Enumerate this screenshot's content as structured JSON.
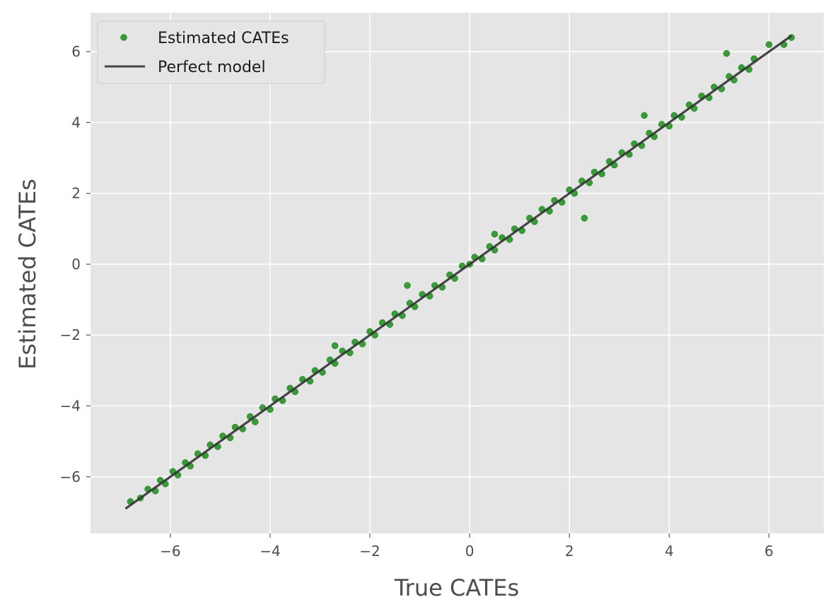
{
  "chart_data": {
    "type": "scatter",
    "xlabel": "True CATEs",
    "ylabel": "Estimated CATEs",
    "xlim": [
      -7.6,
      7.1
    ],
    "ylim": [
      -7.6,
      7.1
    ],
    "x_ticks": [
      -6,
      -4,
      -2,
      0,
      2,
      4,
      6
    ],
    "y_ticks": [
      -6,
      -4,
      -2,
      0,
      2,
      4,
      6
    ],
    "grid": true,
    "legend_position": "top-left",
    "colors": {
      "points": "#008000",
      "line": "#333333",
      "background": "#e5e5e5",
      "grid": "#ffffff"
    },
    "series": [
      {
        "name": "Estimated CATEs",
        "kind": "scatter",
        "x": [
          -6.8,
          -6.6,
          -6.45,
          -6.3,
          -6.2,
          -6.1,
          -5.95,
          -5.85,
          -5.7,
          -5.6,
          -5.45,
          -5.3,
          -5.2,
          -5.05,
          -4.95,
          -4.8,
          -4.7,
          -4.55,
          -4.4,
          -4.3,
          -4.15,
          -4.0,
          -3.9,
          -3.75,
          -3.6,
          -3.5,
          -3.35,
          -3.2,
          -3.1,
          -2.95,
          -2.8,
          -2.7,
          -2.55,
          -2.4,
          -2.3,
          -2.15,
          -2.0,
          -1.9,
          -1.75,
          -1.6,
          -1.5,
          -1.35,
          -1.2,
          -1.1,
          -0.95,
          -0.8,
          -0.7,
          -0.55,
          -0.4,
          -0.3,
          -0.15,
          0.0,
          0.1,
          0.25,
          0.4,
          0.5,
          0.65,
          0.8,
          0.9,
          1.05,
          1.2,
          1.3,
          1.45,
          1.6,
          1.7,
          1.85,
          2.0,
          2.1,
          2.25,
          2.4,
          2.5,
          2.65,
          2.8,
          2.9,
          3.05,
          3.2,
          3.3,
          3.45,
          3.6,
          3.7,
          3.85,
          4.0,
          4.1,
          4.25,
          4.4,
          4.5,
          4.65,
          4.8,
          4.9,
          5.05,
          5.2,
          5.3,
          5.45,
          5.6,
          5.7,
          6.0,
          6.3,
          6.45,
          2.3,
          3.5,
          5.15,
          -2.7,
          0.5,
          -1.25
        ],
        "y": [
          -6.7,
          -6.6,
          -6.35,
          -6.4,
          -6.1,
          -6.2,
          -5.85,
          -5.95,
          -5.6,
          -5.7,
          -5.35,
          -5.4,
          -5.1,
          -5.15,
          -4.85,
          -4.9,
          -4.6,
          -4.65,
          -4.3,
          -4.45,
          -4.05,
          -4.1,
          -3.8,
          -3.85,
          -3.5,
          -3.6,
          -3.25,
          -3.3,
          -3.0,
          -3.05,
          -2.7,
          -2.8,
          -2.45,
          -2.5,
          -2.2,
          -2.25,
          -1.9,
          -2.0,
          -1.65,
          -1.7,
          -1.4,
          -1.45,
          -1.1,
          -1.2,
          -0.85,
          -0.9,
          -0.6,
          -0.65,
          -0.3,
          -0.4,
          -0.05,
          0.0,
          0.2,
          0.15,
          0.5,
          0.4,
          0.75,
          0.7,
          1.0,
          0.95,
          1.3,
          1.2,
          1.55,
          1.5,
          1.8,
          1.75,
          2.1,
          2.0,
          2.35,
          2.3,
          2.6,
          2.55,
          2.9,
          2.8,
          3.15,
          3.1,
          3.4,
          3.35,
          3.7,
          3.6,
          3.95,
          3.9,
          4.2,
          4.15,
          4.5,
          4.4,
          4.75,
          4.7,
          5.0,
          4.95,
          5.3,
          5.2,
          5.55,
          5.5,
          5.8,
          6.2,
          6.2,
          6.4,
          1.3,
          4.2,
          5.95,
          -2.3,
          0.85,
          -0.6
        ]
      },
      {
        "name": "Perfect model",
        "kind": "line",
        "x": [
          -6.9,
          6.45
        ],
        "y": [
          -6.9,
          6.45
        ]
      }
    ]
  }
}
